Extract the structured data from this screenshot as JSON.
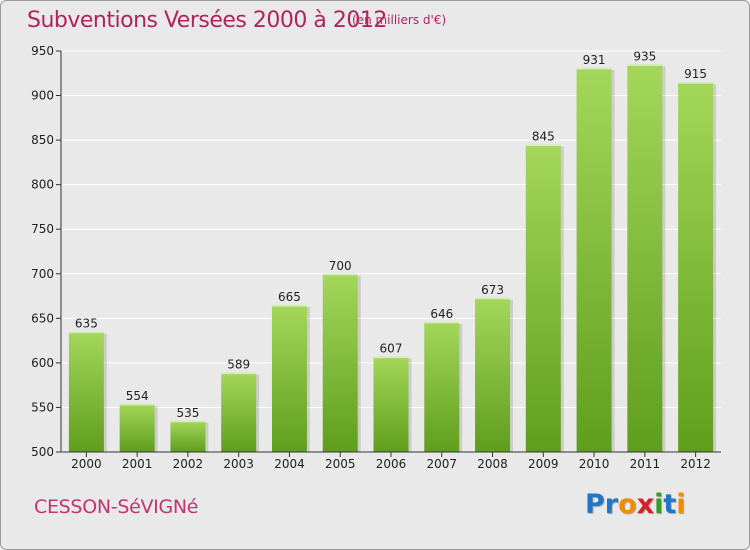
{
  "header": {
    "title": "Subventions Versées 2000 à 2012",
    "subtitle": "(en milliers d'€)"
  },
  "footer": {
    "commune": "CESSON-SéVIGNé",
    "logo": [
      "P",
      "r",
      "o",
      "x",
      "i",
      "t",
      "i"
    ]
  },
  "colors": {
    "bar": "#7cc12e",
    "bar_light": "#a4d75a",
    "bar_dark": "#5f9e1c",
    "title": "#b0245e",
    "logo": [
      "#1f77c8",
      "#1f77c8",
      "#f08c00",
      "#d4202a",
      "#3a9a2b",
      "#1f77c8",
      "#f08c00"
    ]
  },
  "chart_data": {
    "type": "bar",
    "title": "Subventions Versées 2000 à 2012",
    "subtitle": "(en milliers d'€)",
    "categories": [
      "2000",
      "2001",
      "2002",
      "2003",
      "2004",
      "2005",
      "2006",
      "2007",
      "2008",
      "2009",
      "2010",
      "2011",
      "2012"
    ],
    "values": [
      635,
      554,
      535,
      589,
      665,
      700,
      607,
      646,
      673,
      845,
      931,
      935,
      915
    ],
    "ylim": [
      500,
      950
    ],
    "yticks": [
      500,
      550,
      600,
      650,
      700,
      750,
      800,
      850,
      900,
      950
    ],
    "grid": true,
    "xlabel": "",
    "ylabel": ""
  }
}
